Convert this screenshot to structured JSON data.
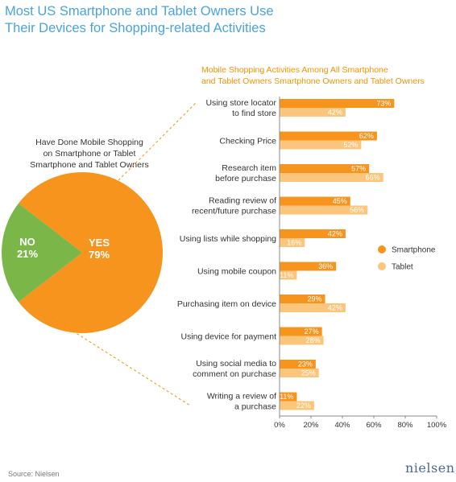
{
  "title": {
    "line1": "Most US Smartphone and Tablet Owners Use",
    "line2": "Their Devices for Shopping-related Activities"
  },
  "colors": {
    "title": "#4aa3df",
    "accent": "#f39200",
    "smartphone": "#f7941d",
    "tablet": "#fbc67c",
    "no": "#7ab648",
    "text": "#333333",
    "leader": "#f39200"
  },
  "pie": {
    "caption": [
      "Have Done Mobile Shopping",
      "on Smartphone or Tablet",
      "Smartphone and Tablet Owners"
    ]
  },
  "source": "Source: Nielsen",
  "logo": "nielsen",
  "chart_data": [
    {
      "type": "pie",
      "slices": [
        {
          "label": "YES",
          "value": 79,
          "display": "79%"
        },
        {
          "label": "NO",
          "value": 21,
          "display": "21%"
        }
      ]
    },
    {
      "type": "bar",
      "orientation": "horizontal",
      "title": [
        "Mobile Shopping Activities Among All Smartphone",
        "and Tablet Owners Smartphone Owners and Tablet Owners"
      ],
      "categories": [
        [
          "Using store locator",
          "to find store"
        ],
        [
          "Checking Price"
        ],
        [
          "Research item",
          "before purchase"
        ],
        [
          "Reading review of",
          "recent/future purchase"
        ],
        [
          "Using lists while shopping"
        ],
        [
          "Using mobile coupon"
        ],
        [
          "Purchasing item on device"
        ],
        [
          "Using device for payment"
        ],
        [
          "Using social media to",
          "comment on purchase"
        ],
        [
          "Writing a review of",
          "a purchase"
        ]
      ],
      "series": [
        {
          "name": "Smartphone",
          "values": [
            73,
            62,
            57,
            45,
            42,
            36,
            29,
            27,
            23,
            11
          ]
        },
        {
          "name": "Tablet",
          "values": [
            42,
            52,
            66,
            56,
            16,
            11,
            42,
            28,
            25,
            22
          ]
        }
      ],
      "xlim": [
        0,
        100
      ],
      "xticks": [
        "0%",
        "20%",
        "40%",
        "60%",
        "80%",
        "100%"
      ],
      "legend_position": "right",
      "grid": false
    }
  ]
}
